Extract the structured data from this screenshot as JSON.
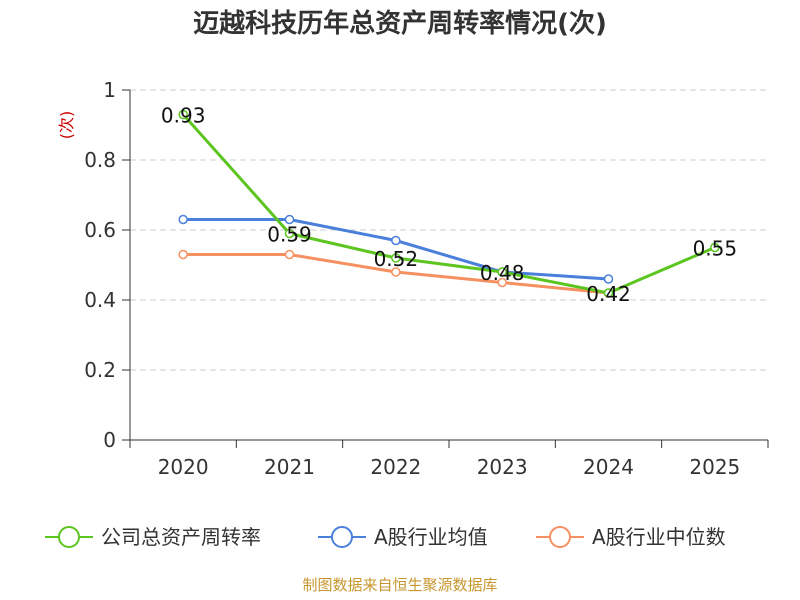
{
  "chart_data": {
    "type": "line",
    "title": "迈越科技历年总资产周转率情况(次)",
    "ylabel": "(次)",
    "xlabel": "",
    "categories": [
      "2020",
      "2021",
      "2022",
      "2023",
      "2024",
      "2025"
    ],
    "ylim": [
      0,
      1
    ],
    "yticks": [
      "0",
      "0.2",
      "0.4",
      "0.6",
      "0.8",
      "1"
    ],
    "grid": true,
    "legend": "bottom",
    "series": [
      {
        "name": "公司总资产周转率",
        "color": "#5cc520",
        "values": [
          0.93,
          0.59,
          0.52,
          0.48,
          0.42,
          0.55
        ],
        "labels": [
          "0.93",
          "0.59",
          "0.52",
          "0.48",
          "0.42",
          "0.55"
        ]
      },
      {
        "name": "A股行业均值",
        "color": "#4a7fdc",
        "values": [
          0.63,
          0.63,
          0.57,
          0.48,
          0.46,
          null
        ]
      },
      {
        "name": "A股行业中位数",
        "color": "#f59060",
        "values": [
          0.53,
          0.53,
          0.48,
          0.45,
          0.42,
          null
        ]
      }
    ],
    "source": "制图数据来自恒生聚源数据库"
  }
}
